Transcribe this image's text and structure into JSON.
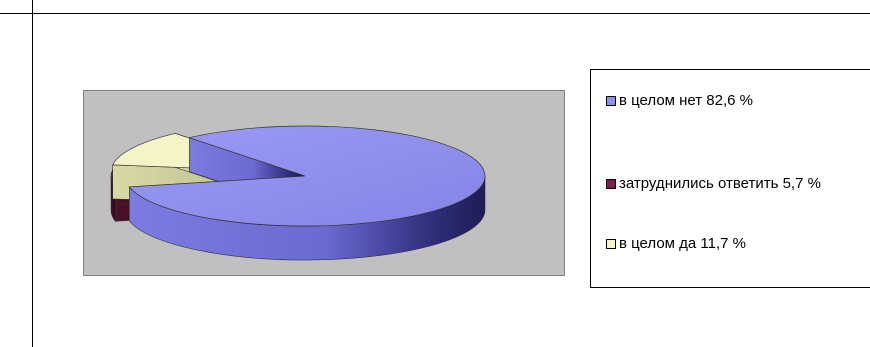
{
  "chart_data": {
    "type": "pie",
    "title": "",
    "labels": [
      "в целом нет",
      "затруднились ответить",
      "в целом да"
    ],
    "values": [
      82.6,
      5.7,
      11.7
    ],
    "unit": "%",
    "colors": [
      "#8f8fef",
      "#7a1f47",
      "#f4f4c6"
    ],
    "legend_position": "right"
  },
  "legend": {
    "items": [
      {
        "label": "в целом нет 82,6 %",
        "color": "#8f8fef"
      },
      {
        "label": "затруднились ответить 5,7 %",
        "color": "#7a1f47"
      },
      {
        "label": "в целом да 11,7 %",
        "color": "#f4f4c6"
      }
    ]
  }
}
